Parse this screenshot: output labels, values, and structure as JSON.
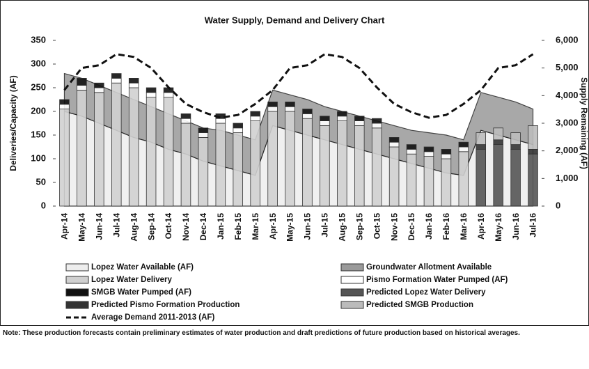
{
  "chart_data": {
    "type": "combo",
    "title": "Water Supply, Demand and Delivery Chart",
    "y_label": "Deliveries/Capacity (AF)",
    "y2_label": "Supply Remaining (AF)",
    "note": "Note: These production forecasts contain preliminary estimates of water production and draft predictions of future production based on historical averages.",
    "categories": [
      "Apr-14",
      "May-14",
      "Jun-14",
      "Jul-14",
      "Aug-14",
      "Sep-14",
      "Oct-14",
      "Nov-14",
      "Dec-14",
      "Jan-15",
      "Feb-15",
      "Mar-15",
      "Apr-15",
      "May-15",
      "Jun-15",
      "Jul-15",
      "Aug-15",
      "Sep-15",
      "Oct-15",
      "Nov-15",
      "Dec-15",
      "Jan-16",
      "Feb-16",
      "Mar-16",
      "Apr-16",
      "May-16",
      "Jun-16",
      "Jul-16"
    ],
    "ylim": [
      0,
      350
    ],
    "yticks": [
      0,
      50,
      100,
      150,
      200,
      250,
      300,
      350
    ],
    "y2lim": [
      0,
      6000
    ],
    "y2ticks": [
      0,
      {
        "value": 1000,
        "label": "1,000"
      },
      {
        "value": 2000,
        "label": "2,000"
      },
      {
        "value": 3000,
        "label": "3,000"
      },
      {
        "value": 4000,
        "label": "4,000"
      },
      {
        "value": 5000,
        "label": "5,000"
      },
      {
        "value": 6000,
        "label": "6,000"
      }
    ],
    "series": [
      {
        "name": "Lopez Water Available (AF)",
        "kind": "area",
        "color": "#eeeeee",
        "values": [
          200,
          190,
          175,
          160,
          145,
          135,
          120,
          110,
          95,
          85,
          75,
          65,
          170,
          160,
          150,
          140,
          130,
          120,
          110,
          100,
          90,
          80,
          70,
          65,
          160,
          150,
          140,
          130
        ]
      },
      {
        "name": "Groundwater Allotment Available",
        "kind": "area",
        "color": "#9a9a9a",
        "values": [
          80,
          80,
          80,
          80,
          80,
          75,
          75,
          70,
          70,
          75,
          75,
          75,
          75,
          75,
          75,
          70,
          70,
          70,
          70,
          70,
          70,
          75,
          80,
          75,
          80,
          80,
          80,
          75
        ]
      },
      {
        "name": "Lopez Water Delivery",
        "kind": "bar",
        "color": "#d0d0d0",
        "values": [
          205,
          245,
          240,
          260,
          250,
          230,
          230,
          175,
          145,
          175,
          155,
          180,
          200,
          200,
          185,
          170,
          180,
          170,
          165,
          125,
          110,
          105,
          100,
          115,
          null,
          null,
          null,
          null
        ]
      },
      {
        "name": "Pismo Formation Water Pumped (AF)",
        "kind": "bar",
        "color": "#ffffff",
        "values": [
          10,
          10,
          10,
          10,
          10,
          10,
          10,
          10,
          10,
          10,
          10,
          10,
          10,
          10,
          10,
          10,
          10,
          10,
          10,
          10,
          10,
          10,
          10,
          10,
          null,
          null,
          null,
          null
        ]
      },
      {
        "name": "SMGB Water Pumped (AF)",
        "kind": "bar",
        "color": "#111111",
        "values": [
          10,
          15,
          10,
          10,
          10,
          10,
          10,
          10,
          10,
          10,
          10,
          10,
          10,
          10,
          10,
          10,
          10,
          10,
          10,
          10,
          10,
          10,
          10,
          10,
          null,
          null,
          null,
          null
        ]
      },
      {
        "name": "Predicted Lopez Water Delivery",
        "kind": "bar",
        "color": "#555555",
        "values": [
          null,
          null,
          null,
          null,
          null,
          null,
          null,
          null,
          null,
          null,
          null,
          null,
          null,
          null,
          null,
          null,
          null,
          null,
          null,
          null,
          null,
          null,
          null,
          null,
          120,
          130,
          120,
          110
        ]
      },
      {
        "name": "Predicted Pismo Formation Production",
        "kind": "bar",
        "color": "#333333",
        "values": [
          null,
          null,
          null,
          null,
          null,
          null,
          null,
          null,
          null,
          null,
          null,
          null,
          null,
          null,
          null,
          null,
          null,
          null,
          null,
          null,
          null,
          null,
          null,
          null,
          10,
          10,
          10,
          10
        ]
      },
      {
        "name": "Predicted SMGB Production",
        "kind": "bar",
        "color": "#bbbbbb",
        "values": [
          null,
          null,
          null,
          null,
          null,
          null,
          null,
          null,
          null,
          null,
          null,
          null,
          null,
          null,
          null,
          null,
          null,
          null,
          null,
          null,
          null,
          null,
          null,
          null,
          25,
          25,
          25,
          50
        ]
      },
      {
        "name": "Average Demand 2011-2013 (AF)",
        "kind": "line",
        "axis": "y2",
        "dashed": true,
        "color": "#111111",
        "values": [
          4200,
          5000,
          5100,
          5500,
          5400,
          5000,
          4300,
          3700,
          3400,
          3200,
          3300,
          3700,
          4200,
          5000,
          5100,
          5500,
          5400,
          5000,
          4300,
          3700,
          3400,
          3200,
          3300,
          3700,
          4200,
          5000,
          5100,
          5500
        ]
      }
    ]
  }
}
